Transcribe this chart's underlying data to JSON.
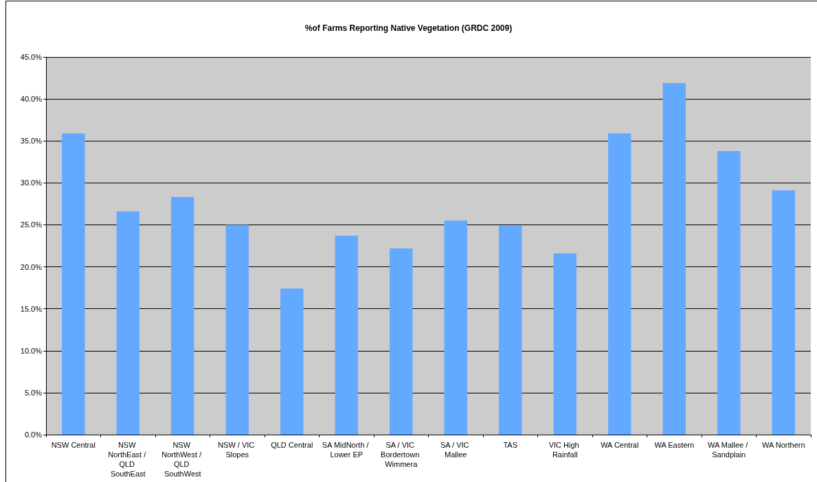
{
  "chart_data": {
    "type": "bar",
    "title": "%of Farms Reporting Native Vegetation (GRDC 2009)",
    "categories": [
      "NSW Central",
      "NSW NorthEast / QLD SouthEast",
      "NSW NorthWest / QLD SouthWest",
      "NSW / VIC Slopes",
      "QLD Central",
      "SA MidNorth / Lower EP",
      "SA / VIC Bordertown Wimmera",
      "SA / VIC Mallee",
      "TAS",
      "VIC High Rainfall",
      "WA Central",
      "WA Eastern",
      "WA Mallee / Sandplain",
      "WA Northern"
    ],
    "values": [
      35.9,
      26.6,
      28.3,
      25.0,
      17.4,
      23.7,
      22.2,
      25.5,
      24.9,
      21.6,
      35.9,
      41.9,
      33.8,
      29.1
    ],
    "color": "#62a9ff",
    "ylim": [
      0,
      45
    ],
    "yticks": [
      {
        "value": 0,
        "label": "0.0%"
      },
      {
        "value": 5,
        "label": "5.0%"
      },
      {
        "value": 10,
        "label": "10.0%"
      },
      {
        "value": 15,
        "label": "15.0%"
      },
      {
        "value": 20,
        "label": "20.0%"
      },
      {
        "value": 25,
        "label": "25.0%"
      },
      {
        "value": 30,
        "label": "30.0%"
      },
      {
        "value": 35,
        "label": "35.0%"
      },
      {
        "value": 40,
        "label": "40.0%"
      },
      {
        "value": 45,
        "label": "45.0%"
      }
    ],
    "grid": "y"
  }
}
